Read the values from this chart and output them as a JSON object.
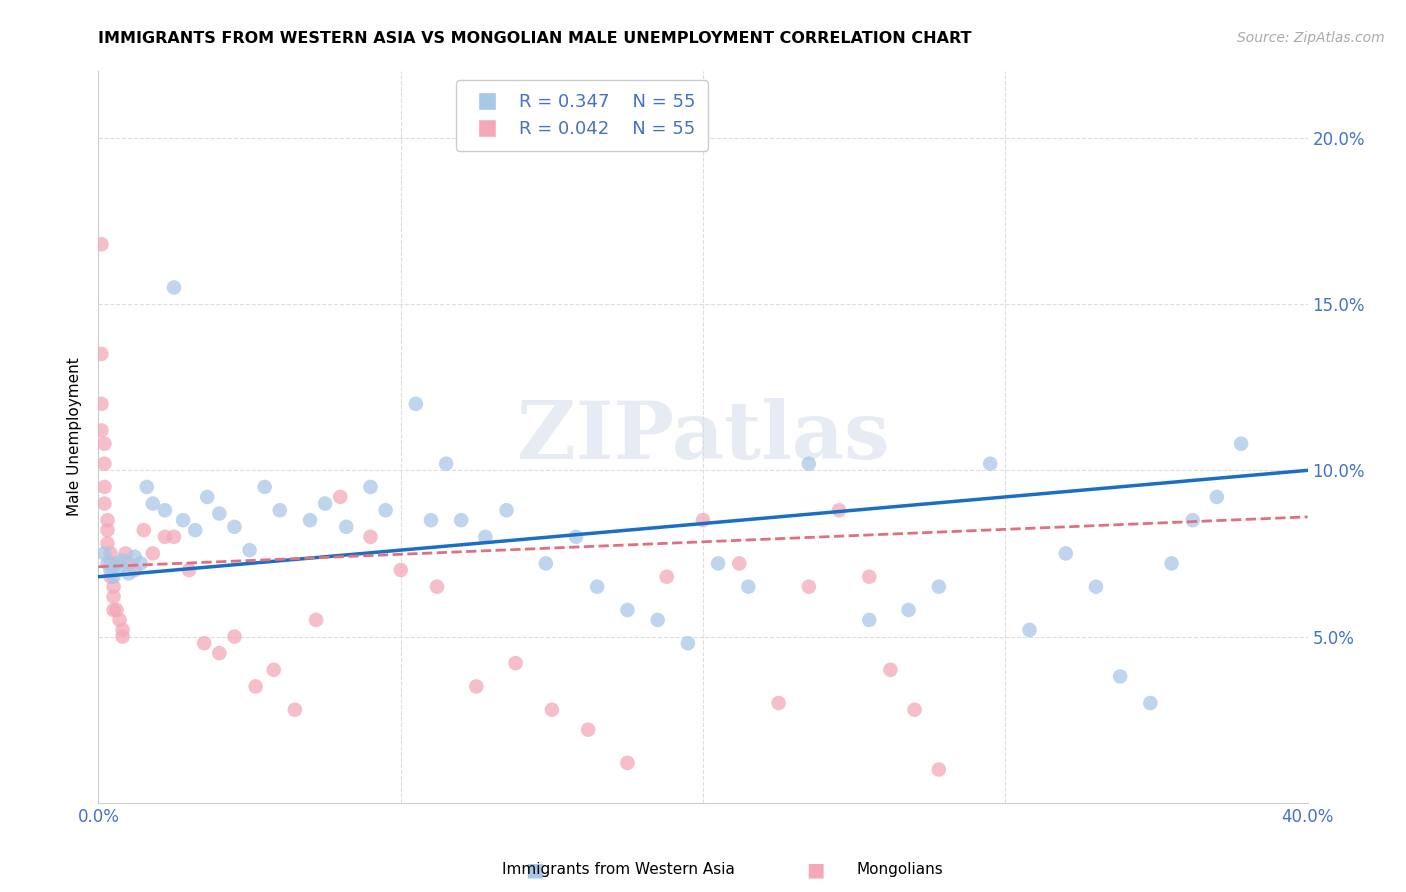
{
  "title": "IMMIGRANTS FROM WESTERN ASIA VS MONGOLIAN MALE UNEMPLOYMENT CORRELATION CHART",
  "source": "Source: ZipAtlas.com",
  "ylabel": "Male Unemployment",
  "xlim": [
    0.0,
    0.4
  ],
  "ylim": [
    0.0,
    0.22
  ],
  "xticks": [
    0.0,
    0.05,
    0.1,
    0.15,
    0.2,
    0.25,
    0.3,
    0.35,
    0.4
  ],
  "yticks": [
    0.0,
    0.05,
    0.1,
    0.15,
    0.2
  ],
  "legend_blue_r": "0.347",
  "legend_blue_n": "55",
  "legend_pink_r": "0.042",
  "legend_pink_n": "55",
  "legend_label_blue": "Immigrants from Western Asia",
  "legend_label_pink": "Mongolians",
  "blue_color": "#a8c8e8",
  "pink_color": "#f4a8b8",
  "line_blue": "#1a6fc4",
  "line_pink": "#e07080",
  "blue_x": [
    0.002,
    0.003,
    0.004,
    0.005,
    0.006,
    0.007,
    0.008,
    0.01,
    0.012,
    0.014,
    0.016,
    0.018,
    0.022,
    0.025,
    0.028,
    0.032,
    0.036,
    0.04,
    0.045,
    0.05,
    0.055,
    0.06,
    0.07,
    0.075,
    0.082,
    0.09,
    0.095,
    0.105,
    0.11,
    0.115,
    0.12,
    0.128,
    0.135,
    0.148,
    0.158,
    0.165,
    0.175,
    0.185,
    0.195,
    0.205,
    0.215,
    0.235,
    0.255,
    0.268,
    0.278,
    0.295,
    0.308,
    0.32,
    0.33,
    0.338,
    0.348,
    0.355,
    0.362,
    0.37,
    0.378
  ],
  "blue_y": [
    0.075,
    0.072,
    0.07,
    0.068,
    0.072,
    0.071,
    0.073,
    0.069,
    0.074,
    0.072,
    0.095,
    0.09,
    0.088,
    0.155,
    0.085,
    0.082,
    0.092,
    0.087,
    0.083,
    0.076,
    0.095,
    0.088,
    0.085,
    0.09,
    0.083,
    0.095,
    0.088,
    0.12,
    0.085,
    0.102,
    0.085,
    0.08,
    0.088,
    0.072,
    0.08,
    0.065,
    0.058,
    0.055,
    0.048,
    0.072,
    0.065,
    0.102,
    0.055,
    0.058,
    0.065,
    0.102,
    0.052,
    0.075,
    0.065,
    0.038,
    0.03,
    0.072,
    0.085,
    0.092,
    0.108
  ],
  "pink_x": [
    0.001,
    0.001,
    0.001,
    0.001,
    0.002,
    0.002,
    0.002,
    0.002,
    0.003,
    0.003,
    0.003,
    0.004,
    0.004,
    0.004,
    0.005,
    0.005,
    0.005,
    0.006,
    0.007,
    0.008,
    0.008,
    0.009,
    0.01,
    0.012,
    0.015,
    0.018,
    0.022,
    0.025,
    0.03,
    0.035,
    0.04,
    0.045,
    0.052,
    0.058,
    0.065,
    0.072,
    0.08,
    0.09,
    0.1,
    0.112,
    0.125,
    0.138,
    0.15,
    0.162,
    0.175,
    0.188,
    0.2,
    0.212,
    0.225,
    0.235,
    0.245,
    0.255,
    0.262,
    0.27,
    0.278
  ],
  "pink_y": [
    0.168,
    0.135,
    0.12,
    0.112,
    0.108,
    0.102,
    0.095,
    0.09,
    0.085,
    0.082,
    0.078,
    0.075,
    0.072,
    0.068,
    0.065,
    0.062,
    0.058,
    0.058,
    0.055,
    0.052,
    0.05,
    0.075,
    0.072,
    0.07,
    0.082,
    0.075,
    0.08,
    0.08,
    0.07,
    0.048,
    0.045,
    0.05,
    0.035,
    0.04,
    0.028,
    0.055,
    0.092,
    0.08,
    0.07,
    0.065,
    0.035,
    0.042,
    0.028,
    0.022,
    0.012,
    0.068,
    0.085,
    0.072,
    0.03,
    0.065,
    0.088,
    0.068,
    0.04,
    0.028,
    0.01
  ],
  "watermark_text": "ZIPatlas",
  "grid_color": "#dddddd",
  "spine_color": "#cccccc"
}
